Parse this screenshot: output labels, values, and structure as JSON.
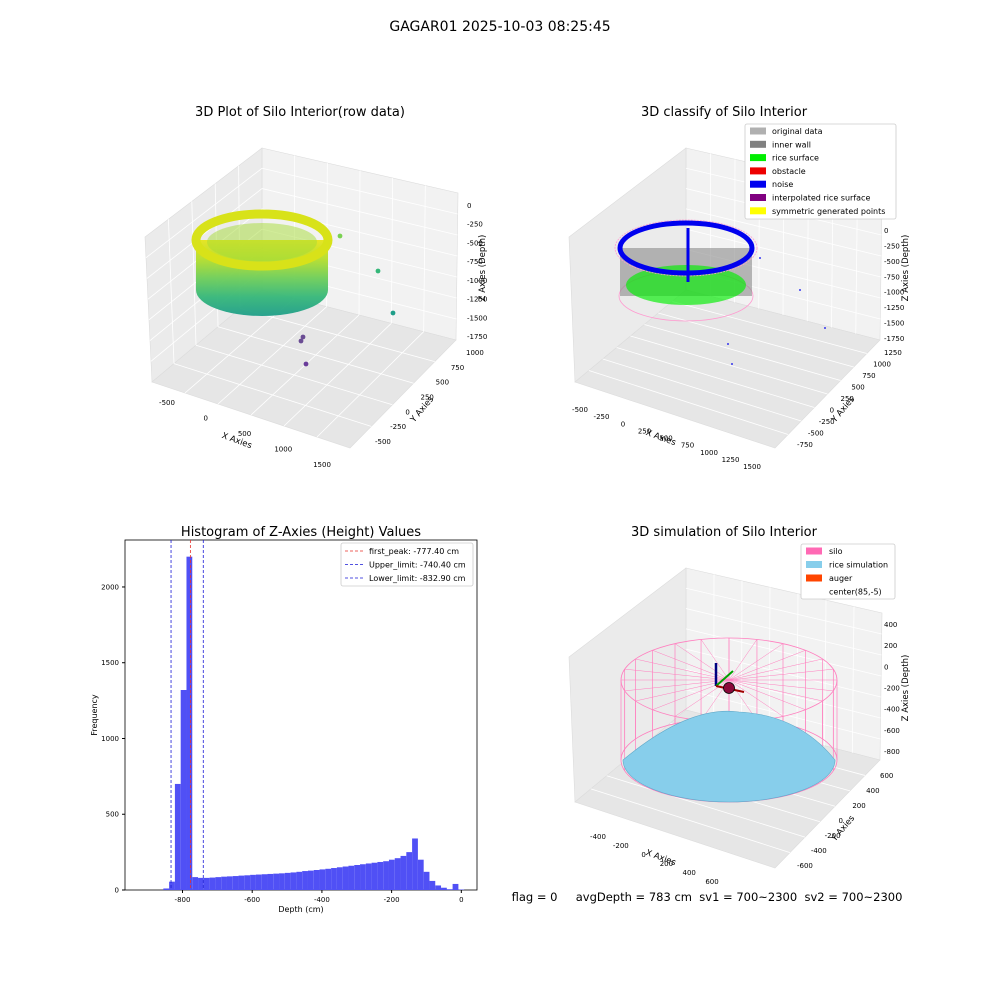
{
  "figure": {
    "suptitle": "GAGAR01 2025-10-03 08:25:45",
    "status_text": "flag = 0     avgDepth = 783 cm  sv1 = 700~2300  sv2 = 700~2300"
  },
  "colors": {
    "hist_bar": "#5050f5",
    "first_peak": "#e8302a",
    "limit_lines": "#1a1ad6",
    "silo_wire": "#ff7fbf",
    "rice_sim": "#87ceeb",
    "auger": "#ff4500",
    "grid_pane": "#f2f2f2"
  },
  "chart_data": [
    {
      "type": "scatter",
      "dims": 3,
      "title": "3D Plot of Silo Interior(row data)",
      "xlabel": "X Axies",
      "ylabel": "Y Axies",
      "zlabel": "Z Axies (Depth)",
      "x_ticks": [
        "-500",
        "0",
        "500",
        "1000",
        "1500"
      ],
      "y_ticks": [
        "-500",
        "-250",
        "0",
        "250",
        "500",
        "750",
        "1000"
      ],
      "z_ticks": [
        "0",
        "-250",
        "-500",
        "-750",
        "-1000",
        "-1250",
        "-1500",
        "-1750"
      ],
      "colormap": "viridis",
      "outliers_note": ""
    },
    {
      "type": "scatter",
      "dims": 3,
      "title": "3D classify of Silo Interior",
      "xlabel": "X Axies",
      "ylabel": "Y Axies",
      "zlabel": "Z Axies (Depth)",
      "x_ticks": [
        "-500",
        "-250",
        "0",
        "250",
        "500",
        "750",
        "1000",
        "1250",
        "1500"
      ],
      "y_ticks": [
        "-750",
        "-500",
        "-250",
        "0",
        "250",
        "500",
        "750",
        "1000",
        "1250"
      ],
      "z_ticks": [
        "0",
        "-250",
        "-500",
        "-750",
        "-1000",
        "-1250",
        "-1500",
        "-1750"
      ],
      "legend": [
        {
          "label": "original data",
          "color": "#b0b0b0"
        },
        {
          "label": "inner wall",
          "color": "#808080"
        },
        {
          "label": "rice surface",
          "color": "#00ee00"
        },
        {
          "label": "obstacle",
          "color": "#ee0000"
        },
        {
          "label": "noise",
          "color": "#0000ee"
        },
        {
          "label": "interpolated rice surface",
          "color": "#800080"
        },
        {
          "label": "symmetric generated points",
          "color": "#ffff00"
        }
      ],
      "legend_position": "top-right"
    },
    {
      "type": "bar",
      "title": "Histogram of Z-Axies (Height) Values",
      "xlabel": "Depth (cm)",
      "ylabel": "Frequency",
      "xlim": [
        -965,
        45
      ],
      "ylim": [
        0,
        2310
      ],
      "x_ticks": [
        -800,
        -600,
        -400,
        -200,
        0
      ],
      "y_ticks": [
        0,
        500,
        1000,
        1500,
        2000
      ],
      "bin_width": 16.6,
      "bins_start": [
        -855.0,
        -838.4,
        -821.8,
        -805.2,
        -788.6,
        -772.0,
        -755.4,
        -738.8,
        -722.2,
        -705.6,
        -689.0,
        -672.4,
        -655.8,
        -639.2,
        -622.6,
        -606.0,
        -589.4,
        -572.8,
        -556.2,
        -539.6,
        -523.0,
        -506.4,
        -489.8,
        -473.2,
        -456.6,
        -440.0,
        -423.4,
        -406.8,
        -390.2,
        -373.6,
        -357.0,
        -340.4,
        -323.8,
        -307.2,
        -290.6,
        -274.0,
        -257.4,
        -240.8,
        -224.2,
        -207.6,
        -191.0,
        -174.4,
        -157.8,
        -141.2,
        -124.6,
        -108.0,
        -91.4,
        -74.8,
        -58.2,
        -41.6,
        -25.0,
        -8.4
      ],
      "counts": [
        10,
        55,
        700,
        1320,
        2200,
        85,
        80,
        80,
        82,
        85,
        88,
        90,
        92,
        95,
        97,
        100,
        102,
        104,
        106,
        108,
        110,
        113,
        116,
        120,
        125,
        128,
        132,
        136,
        140,
        145,
        150,
        155,
        160,
        165,
        170,
        175,
        180,
        185,
        190,
        200,
        210,
        225,
        250,
        340,
        200,
        120,
        60,
        30,
        15,
        5,
        40,
        3
      ],
      "vlines": [
        {
          "label": "first_peak: -777.40 cm",
          "x": -777.4,
          "color": "#e8302a"
        },
        {
          "label": "Upper_limit: -740.40 cm",
          "x": -740.4,
          "color": "#1a1ad6"
        },
        {
          "label": "Lower_limit: -832.90 cm",
          "x": -832.9,
          "color": "#1a1ad6"
        }
      ],
      "legend_position": "top-right"
    },
    {
      "type": "scatter",
      "dims": 3,
      "title": "3D simulation of Silo Interior",
      "xlabel": "X Axies",
      "ylabel": "Y Axies",
      "zlabel": "Z Axies (Depth)",
      "x_ticks": [
        "-400",
        "-200",
        "0",
        "200",
        "400",
        "600"
      ],
      "y_ticks": [
        "-600",
        "-400",
        "-200",
        "0",
        "200",
        "400",
        "600"
      ],
      "z_ticks": [
        "400",
        "200",
        "0",
        "-200",
        "-400",
        "-600",
        "-800"
      ],
      "legend": [
        {
          "label": "silo",
          "color": "#ff69b4"
        },
        {
          "label": "rice simulation",
          "color": "#87ceeb"
        },
        {
          "label": "auger",
          "color": "#ff4500"
        },
        {
          "label": "center(85,-5)",
          "color": "#ffffff"
        }
      ],
      "legend_position": "top-right"
    }
  ]
}
